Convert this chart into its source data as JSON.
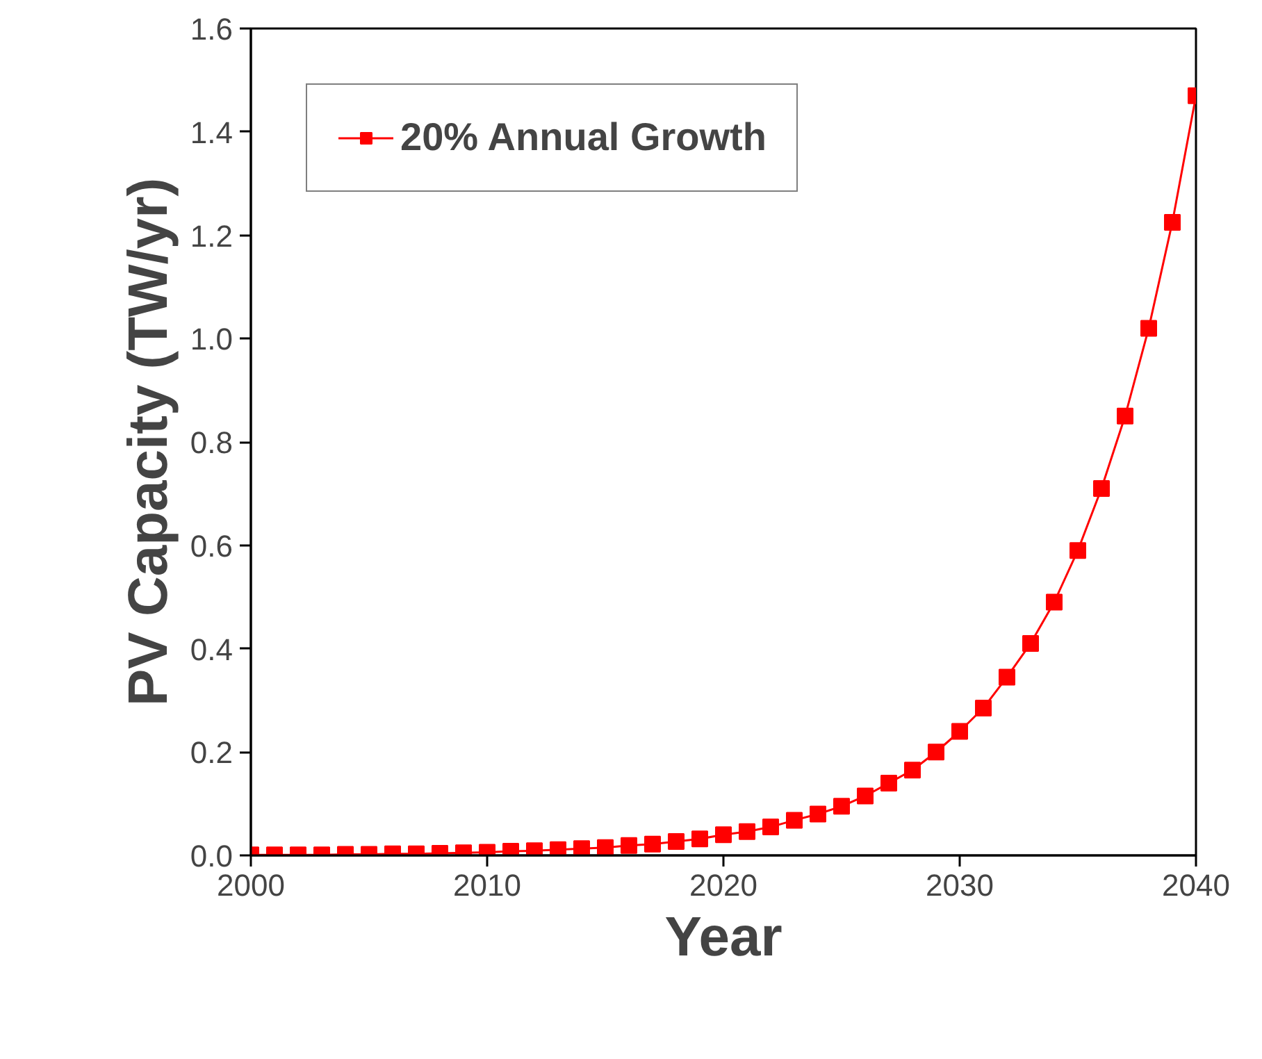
{
  "chart_data": {
    "type": "line",
    "xlabel": "Year",
    "ylabel": "PV Capacity (TW/yr)",
    "x": [
      2000,
      2001,
      2002,
      2003,
      2004,
      2005,
      2006,
      2007,
      2008,
      2009,
      2010,
      2011,
      2012,
      2013,
      2014,
      2015,
      2016,
      2017,
      2018,
      2019,
      2020,
      2021,
      2022,
      2023,
      2024,
      2025,
      2026,
      2027,
      2028,
      2029,
      2030,
      2031,
      2032,
      2033,
      2034,
      2035,
      2036,
      2037,
      2038,
      2039,
      2040
    ],
    "series": [
      {
        "name": "20% Annual Growth",
        "color": "#ff0000",
        "values": [
          0.001,
          0.001,
          0.001,
          0.001,
          0.002,
          0.002,
          0.003,
          0.003,
          0.004,
          0.005,
          0.006,
          0.008,
          0.009,
          0.011,
          0.013,
          0.015,
          0.019,
          0.022,
          0.027,
          0.032,
          0.04,
          0.046,
          0.055,
          0.068,
          0.08,
          0.095,
          0.115,
          0.14,
          0.165,
          0.2,
          0.24,
          0.285,
          0.345,
          0.41,
          0.49,
          0.59,
          0.71,
          0.85,
          1.02,
          1.225,
          1.47
        ]
      }
    ],
    "xlim": [
      2000,
      2040
    ],
    "xticks": [
      2000,
      2010,
      2020,
      2030,
      2040
    ],
    "ylim": [
      0,
      1.6
    ],
    "yticks": [
      {
        "value": 0,
        "label": "0.0"
      },
      {
        "value": 0.2,
        "label": "0.2"
      },
      {
        "value": 0.4,
        "label": "0.4"
      },
      {
        "value": 0.6,
        "label": "0.6"
      },
      {
        "value": 0.8,
        "label": "0.8"
      },
      {
        "value": 1.0,
        "label": "1.0"
      },
      {
        "value": 1.2,
        "label": "1.2"
      },
      {
        "value": 1.4,
        "label": "1.4"
      },
      {
        "value": 1.6,
        "label": "1.6"
      }
    ],
    "grid": false,
    "legend": "top left",
    "marker": "square",
    "line_style": "solid"
  }
}
